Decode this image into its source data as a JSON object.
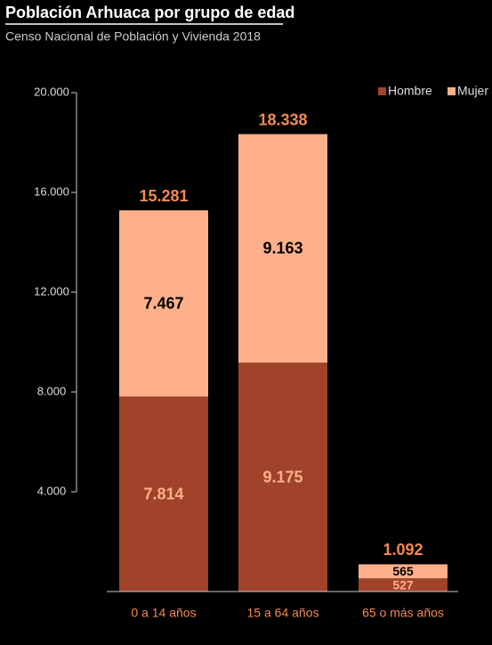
{
  "chart_data": {
    "type": "stacked-bar",
    "title": "Población Arhuaca por grupo de edad",
    "subtitle": "Censo Nacional de Población y Vivienda 2018",
    "categories": [
      "0 a 14 años",
      "15 a 64 años",
      "65 o más años"
    ],
    "series": [
      {
        "name": "Hombre",
        "color": "#a0432a",
        "values": [
          7814,
          9175,
          527
        ],
        "value_labels": [
          "7.814",
          "9.175",
          "527"
        ]
      },
      {
        "name": "Mujer",
        "color": "#fdb08a",
        "values": [
          7467,
          9163,
          565
        ],
        "value_labels": [
          "7.467",
          "9.163",
          "565"
        ]
      }
    ],
    "totals": {
      "values": [
        15281,
        18338,
        1092
      ],
      "value_labels": [
        "15.281",
        "18.338",
        "1.092"
      ]
    },
    "ylim": [
      0,
      20000
    ],
    "yticks": [
      {
        "value": 4000,
        "label": "4.000"
      },
      {
        "value": 8000,
        "label": "8.000"
      },
      {
        "value": 12000,
        "label": "12.000"
      },
      {
        "value": 16000,
        "label": "16.000"
      },
      {
        "value": 20000,
        "label": "20.000"
      }
    ],
    "legend": "top-right"
  }
}
